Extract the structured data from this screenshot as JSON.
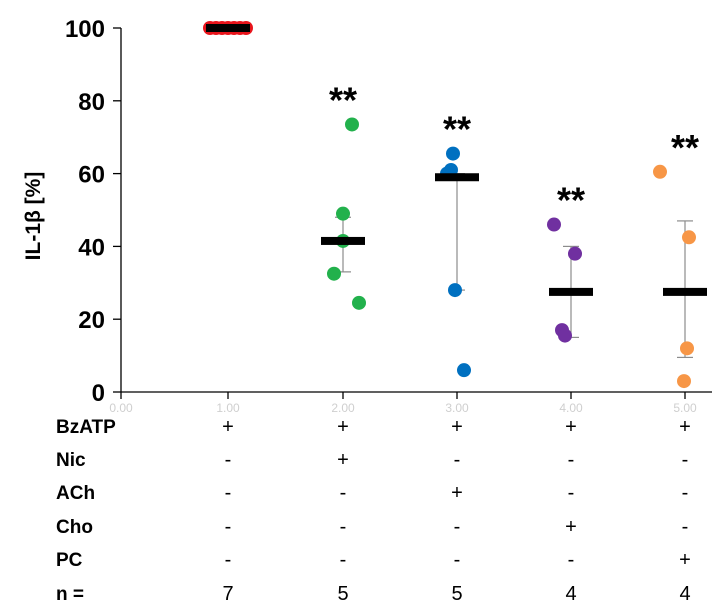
{
  "chart_data": {
    "type": "scatter",
    "ylabel": "IL-1β  [%]",
    "ylim": [
      0,
      100
    ],
    "yticks": [
      "0",
      "20",
      "40",
      "60",
      "80",
      "100"
    ],
    "grid": false,
    "x_ghost_labels": [
      "0.00",
      "1.00",
      "2.00",
      "3.00",
      "4.00",
      "5.00"
    ],
    "groups": [
      {
        "index": 1,
        "color": "#e8141b",
        "points": [
          100,
          100,
          100,
          100,
          100,
          100,
          100
        ],
        "mean": 100,
        "error_bar": null,
        "significance": ""
      },
      {
        "index": 2,
        "color": "#22b14c",
        "points": [
          73.5,
          49,
          41.5,
          32.5,
          24.5
        ],
        "mean": 41.5,
        "error_bar": [
          33,
          48
        ],
        "significance": "**"
      },
      {
        "index": 3,
        "color": "#0070c0",
        "points": [
          65.5,
          61,
          60,
          28,
          6
        ],
        "mean": 59,
        "error_bar": [
          28,
          60
        ],
        "significance": "**"
      },
      {
        "index": 4,
        "color": "#7030a0",
        "points": [
          46,
          38,
          17,
          15.5
        ],
        "mean": 27.5,
        "error_bar": [
          15,
          40
        ],
        "significance": "**"
      },
      {
        "index": 5,
        "color": "#f79646",
        "points": [
          60.5,
          42.5,
          12,
          3
        ],
        "mean": 27.5,
        "error_bar": [
          9.5,
          47
        ],
        "significance": "**"
      }
    ]
  },
  "table": {
    "rows": [
      {
        "label": "BzATP",
        "values": [
          "+",
          "+",
          "+",
          "+",
          "+"
        ]
      },
      {
        "label": "Nic",
        "values": [
          "-",
          "+",
          "-",
          "-",
          "-"
        ]
      },
      {
        "label": "ACh",
        "values": [
          "-",
          "-",
          "+",
          "-",
          "-"
        ]
      },
      {
        "label": "Cho",
        "values": [
          "-",
          "-",
          "-",
          "+",
          "-"
        ]
      },
      {
        "label": "PC",
        "values": [
          "-",
          "-",
          "-",
          "-",
          "+"
        ]
      },
      {
        "label": "n =",
        "values": [
          "7",
          "5",
          "5",
          "4",
          "4"
        ]
      }
    ]
  }
}
